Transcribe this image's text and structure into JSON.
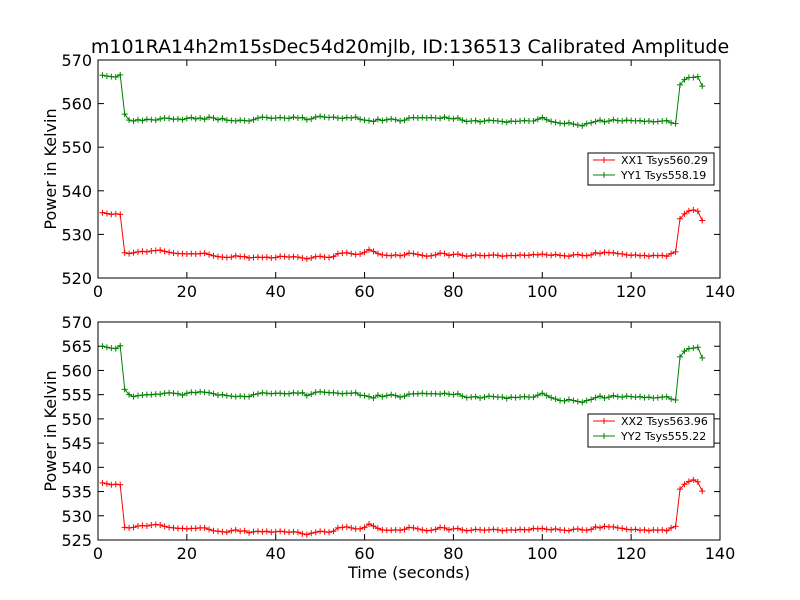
{
  "title": "m101RA14h2m15sDec54d20mjlb, ID:136513 Calibrated Amplitude",
  "chart_data": [
    {
      "type": "line",
      "title": "m101RA14h2m15sDec54d20mjlb, ID:136513 Calibrated Amplitude",
      "xlabel": "",
      "ylabel": "Power in Kelvin",
      "xlim": [
        0,
        140
      ],
      "ylim": [
        520,
        570
      ],
      "xticks": [
        "0",
        "20",
        "40",
        "60",
        "80",
        "100",
        "120",
        "140"
      ],
      "yticks": [
        "520",
        "530",
        "540",
        "550",
        "560",
        "570"
      ],
      "legend_position": "right",
      "marker": "+",
      "grid": false,
      "x": [
        1,
        2,
        3,
        4,
        5,
        6,
        7,
        8,
        9,
        10,
        11,
        12,
        13,
        14,
        15,
        16,
        17,
        18,
        19,
        20,
        21,
        22,
        23,
        24,
        25,
        26,
        27,
        28,
        29,
        30,
        31,
        32,
        33,
        34,
        35,
        36,
        37,
        38,
        39,
        40,
        41,
        42,
        43,
        44,
        45,
        46,
        47,
        48,
        49,
        50,
        51,
        52,
        53,
        54,
        55,
        56,
        57,
        58,
        59,
        60,
        61,
        62,
        63,
        64,
        65,
        66,
        67,
        68,
        69,
        70,
        71,
        72,
        73,
        74,
        75,
        76,
        77,
        78,
        79,
        80,
        81,
        82,
        83,
        84,
        85,
        86,
        87,
        88,
        89,
        90,
        91,
        92,
        93,
        94,
        95,
        96,
        97,
        98,
        99,
        100,
        101,
        102,
        103,
        104,
        105,
        106,
        107,
        108,
        109,
        110,
        111,
        112,
        113,
        114,
        115,
        116,
        117,
        118,
        119,
        120,
        121,
        122,
        123,
        124,
        125,
        126,
        127,
        128,
        129,
        130,
        131,
        132,
        133,
        134,
        135,
        136
      ],
      "series": [
        {
          "name": "XX1 Tsys560.29",
          "color": "#ff0000",
          "values": [
            535.0,
            534.8,
            534.6,
            534.7,
            534.6,
            525.8,
            525.6,
            525.8,
            526.0,
            526.1,
            526.0,
            526.2,
            526.3,
            526.4,
            526.1,
            525.9,
            525.7,
            525.6,
            525.6,
            525.5,
            525.6,
            525.5,
            525.6,
            525.7,
            525.4,
            525.1,
            524.9,
            524.8,
            524.7,
            524.8,
            525.1,
            524.9,
            524.9,
            524.6,
            524.7,
            524.8,
            524.7,
            524.8,
            524.6,
            524.7,
            525.0,
            524.9,
            524.8,
            524.9,
            524.8,
            524.6,
            524.4,
            524.6,
            524.9,
            525.0,
            524.8,
            524.7,
            524.9,
            525.6,
            525.7,
            525.8,
            525.6,
            525.4,
            525.5,
            525.9,
            526.5,
            526.1,
            525.6,
            525.3,
            525.2,
            525.1,
            525.3,
            525.1,
            525.3,
            525.7,
            525.6,
            525.4,
            525.2,
            525.0,
            525.1,
            525.3,
            525.7,
            525.6,
            525.2,
            525.4,
            525.5,
            525.2,
            525.0,
            525.1,
            525.3,
            525.2,
            525.1,
            525.2,
            525.3,
            525.2,
            525.0,
            525.1,
            525.2,
            525.1,
            525.3,
            525.2,
            525.2,
            525.4,
            525.3,
            525.5,
            525.3,
            525.2,
            525.4,
            525.2,
            525.1,
            525.0,
            525.3,
            525.4,
            525.2,
            525.1,
            525.3,
            525.8,
            525.6,
            525.9,
            525.8,
            525.8,
            525.6,
            525.5,
            525.3,
            525.2,
            525.3,
            525.1,
            525.2,
            525.0,
            525.2,
            525.1,
            525.2,
            525.0,
            525.6,
            526.0,
            533.6,
            534.7,
            535.4,
            535.6,
            535.3,
            533.2
          ]
        },
        {
          "name": "YY1 Tsys558.19",
          "color": "#008000",
          "values": [
            566.5,
            566.3,
            566.2,
            566.1,
            566.6,
            557.6,
            556.2,
            556.0,
            556.3,
            556.1,
            556.4,
            556.3,
            556.2,
            556.5,
            556.7,
            556.6,
            556.4,
            556.5,
            556.3,
            556.6,
            556.8,
            556.5,
            556.7,
            556.4,
            556.9,
            556.7,
            556.3,
            556.6,
            556.2,
            556.1,
            556.0,
            556.2,
            556.1,
            556.0,
            556.3,
            556.7,
            556.9,
            556.8,
            556.6,
            556.7,
            556.8,
            556.7,
            556.6,
            556.9,
            556.7,
            556.8,
            556.3,
            556.5,
            556.9,
            557.1,
            556.9,
            556.8,
            556.9,
            556.7,
            556.6,
            556.8,
            556.7,
            556.9,
            556.4,
            556.2,
            556.1,
            555.9,
            556.4,
            556.1,
            556.3,
            556.5,
            556.3,
            556.0,
            556.2,
            556.7,
            556.8,
            556.7,
            556.8,
            556.7,
            556.8,
            556.7,
            556.6,
            556.9,
            556.6,
            556.5,
            556.7,
            556.2,
            555.9,
            556.0,
            556.1,
            555.8,
            556.0,
            556.2,
            556.1,
            556.0,
            555.9,
            555.7,
            556.0,
            555.9,
            556.0,
            556.1,
            556.0,
            556.0,
            556.4,
            556.8,
            556.3,
            555.9,
            555.7,
            555.5,
            555.4,
            555.6,
            555.3,
            555.1,
            554.9,
            555.4,
            555.6,
            555.9,
            556.2,
            555.8,
            556.0,
            556.3,
            556.1,
            556.0,
            556.2,
            556.1,
            556.0,
            556.1,
            555.9,
            556.0,
            555.8,
            555.9,
            556.0,
            556.1,
            555.6,
            555.4,
            564.3,
            565.5,
            566.0,
            566.0,
            566.2,
            564.0
          ]
        }
      ]
    },
    {
      "type": "line",
      "title": "",
      "xlabel": "Time (seconds)",
      "ylabel": "Power in Kelvin",
      "xlim": [
        0,
        140
      ],
      "ylim": [
        525,
        570
      ],
      "xticks": [
        "0",
        "20",
        "40",
        "60",
        "80",
        "100",
        "120",
        "140"
      ],
      "yticks": [
        "525",
        "530",
        "535",
        "540",
        "545",
        "550",
        "555",
        "560",
        "565",
        "570"
      ],
      "legend_position": "right",
      "marker": "+",
      "grid": false,
      "x": [
        1,
        2,
        3,
        4,
        5,
        6,
        7,
        8,
        9,
        10,
        11,
        12,
        13,
        14,
        15,
        16,
        17,
        18,
        19,
        20,
        21,
        22,
        23,
        24,
        25,
        26,
        27,
        28,
        29,
        30,
        31,
        32,
        33,
        34,
        35,
        36,
        37,
        38,
        39,
        40,
        41,
        42,
        43,
        44,
        45,
        46,
        47,
        48,
        49,
        50,
        51,
        52,
        53,
        54,
        55,
        56,
        57,
        58,
        59,
        60,
        61,
        62,
        63,
        64,
        65,
        66,
        67,
        68,
        69,
        70,
        71,
        72,
        73,
        74,
        75,
        76,
        77,
        78,
        79,
        80,
        81,
        82,
        83,
        84,
        85,
        86,
        87,
        88,
        89,
        90,
        91,
        92,
        93,
        94,
        95,
        96,
        97,
        98,
        99,
        100,
        101,
        102,
        103,
        104,
        105,
        106,
        107,
        108,
        109,
        110,
        111,
        112,
        113,
        114,
        115,
        116,
        117,
        118,
        119,
        120,
        121,
        122,
        123,
        124,
        125,
        126,
        127,
        128,
        129,
        130,
        131,
        132,
        133,
        134,
        135,
        136
      ],
      "series": [
        {
          "name": "XX2 Tsys563.96",
          "color": "#ff0000",
          "values": [
            536.8,
            536.6,
            536.4,
            536.5,
            536.4,
            527.6,
            527.5,
            527.6,
            527.9,
            528.0,
            527.9,
            528.1,
            528.2,
            528.1,
            527.8,
            527.6,
            527.5,
            527.4,
            527.4,
            527.3,
            527.4,
            527.4,
            527.5,
            527.5,
            527.2,
            526.9,
            526.8,
            526.7,
            526.6,
            526.9,
            527.1,
            526.8,
            526.9,
            526.5,
            526.7,
            526.8,
            526.7,
            526.8,
            526.6,
            526.7,
            526.8,
            526.7,
            526.6,
            526.7,
            526.6,
            526.3,
            526.1,
            526.4,
            526.6,
            526.8,
            526.7,
            526.6,
            526.8,
            527.5,
            527.6,
            527.7,
            527.5,
            527.3,
            527.3,
            527.6,
            528.3,
            527.9,
            527.4,
            527.1,
            527.0,
            527.0,
            527.1,
            527.0,
            527.2,
            527.6,
            527.5,
            527.3,
            527.1,
            526.9,
            527.0,
            527.2,
            527.6,
            527.5,
            527.1,
            527.3,
            527.4,
            527.1,
            526.9,
            527.0,
            527.2,
            527.1,
            527.0,
            527.1,
            527.2,
            527.1,
            526.9,
            527.0,
            527.1,
            527.0,
            527.2,
            527.1,
            527.1,
            527.4,
            527.3,
            527.4,
            527.2,
            527.1,
            527.3,
            527.1,
            527.0,
            526.9,
            527.2,
            527.3,
            527.1,
            527.0,
            527.2,
            527.7,
            527.5,
            527.8,
            527.7,
            527.7,
            527.5,
            527.4,
            527.2,
            527.1,
            527.2,
            527.0,
            527.1,
            526.9,
            527.1,
            527.0,
            527.1,
            526.9,
            527.5,
            527.8,
            535.5,
            536.5,
            537.1,
            537.4,
            537.0,
            535.1
          ]
        },
        {
          "name": "YY2 Tsys555.22",
          "color": "#008000",
          "values": [
            565.0,
            564.8,
            564.6,
            564.5,
            565.1,
            556.1,
            555.0,
            554.6,
            554.8,
            554.9,
            555.0,
            555.0,
            555.1,
            555.1,
            555.3,
            555.4,
            555.3,
            555.2,
            554.9,
            555.3,
            555.5,
            555.4,
            555.6,
            555.5,
            555.4,
            555.2,
            554.9,
            555.0,
            554.8,
            554.7,
            554.6,
            554.7,
            554.6,
            554.6,
            555.0,
            555.2,
            555.4,
            555.3,
            555.2,
            555.3,
            555.3,
            555.2,
            555.2,
            555.4,
            555.3,
            555.4,
            554.8,
            555.1,
            555.5,
            555.6,
            555.5,
            555.4,
            555.4,
            555.3,
            555.2,
            555.3,
            555.3,
            555.4,
            554.9,
            554.8,
            554.6,
            554.3,
            554.9,
            554.6,
            554.8,
            555.0,
            554.8,
            554.5,
            554.7,
            555.1,
            555.2,
            555.2,
            555.3,
            555.2,
            555.2,
            555.2,
            555.1,
            555.3,
            555.1,
            555.0,
            555.2,
            554.7,
            554.4,
            554.5,
            554.6,
            554.3,
            554.5,
            554.7,
            554.6,
            554.5,
            554.5,
            554.2,
            554.5,
            554.4,
            554.5,
            554.6,
            554.5,
            554.5,
            554.9,
            555.3,
            554.8,
            554.4,
            554.1,
            553.8,
            553.7,
            554.0,
            553.8,
            553.6,
            553.4,
            553.8,
            554.0,
            554.4,
            554.7,
            554.3,
            554.5,
            554.8,
            554.6,
            554.5,
            554.7,
            554.6,
            554.5,
            554.6,
            554.4,
            554.5,
            554.3,
            554.4,
            554.5,
            554.6,
            554.1,
            553.9,
            562.8,
            564.0,
            564.5,
            564.6,
            564.8,
            562.6
          ]
        }
      ]
    }
  ]
}
